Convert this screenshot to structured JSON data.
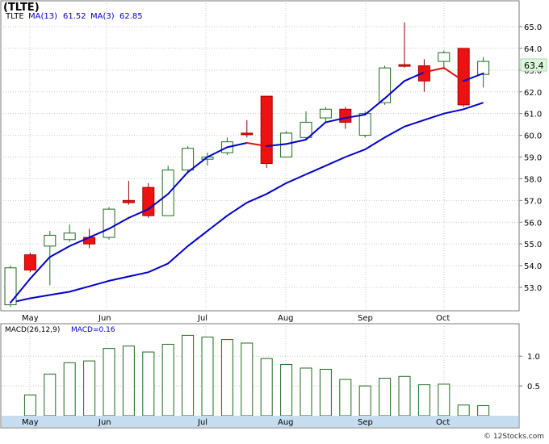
{
  "chart_data": [
    {
      "type": "candlestick",
      "title": "(TLTE)",
      "legend": [
        {
          "label": "TLTE",
          "color": "#000000"
        },
        {
          "label": "MA(13)",
          "value": "61.52",
          "color": "#0000cc"
        },
        {
          "label": "MA(3)",
          "value": "62.85",
          "color": "#0000cc"
        }
      ],
      "price_tag": "63.4",
      "y_ticks": [
        "53.0",
        "54.0",
        "55.0",
        "56.0",
        "57.0",
        "58.0",
        "59.0",
        "60.0",
        "61.0",
        "62.0",
        "63.0",
        "64.0",
        "65.0"
      ],
      "ylim": [
        52.0,
        65.6
      ],
      "x_labels": [
        "May",
        "Jun",
        "Jul",
        "Aug",
        "Sep",
        "Oct"
      ],
      "candles": [
        {
          "open": 52.2,
          "close": 53.9,
          "high": 54.0,
          "low": 52.1
        },
        {
          "open": 54.5,
          "close": 53.8,
          "high": 54.6,
          "low": 53.7
        },
        {
          "open": 54.9,
          "close": 55.4,
          "high": 55.6,
          "low": 53.1
        },
        {
          "open": 55.2,
          "close": 55.5,
          "high": 55.9,
          "low": 55.1
        },
        {
          "open": 55.3,
          "close": 55.0,
          "high": 55.7,
          "low": 54.8
        },
        {
          "open": 55.3,
          "close": 56.6,
          "high": 56.7,
          "low": 55.2
        },
        {
          "open": 57.0,
          "close": 56.9,
          "high": 57.9,
          "low": 56.8
        },
        {
          "open": 57.6,
          "close": 56.3,
          "high": 57.8,
          "low": 56.2
        },
        {
          "open": 56.3,
          "close": 58.4,
          "high": 58.6,
          "low": 56.3
        },
        {
          "open": 58.4,
          "close": 59.4,
          "high": 59.5,
          "low": 58.3
        },
        {
          "open": 58.9,
          "close": 59.0,
          "high": 59.2,
          "low": 58.6
        },
        {
          "open": 59.2,
          "close": 59.7,
          "high": 59.9,
          "low": 59.1
        },
        {
          "open": 60.1,
          "close": 60.05,
          "high": 60.7,
          "low": 59.9
        },
        {
          "open": 61.8,
          "close": 58.7,
          "high": 61.8,
          "low": 58.5
        },
        {
          "open": 59.0,
          "close": 60.1,
          "high": 60.2,
          "low": 59.0
        },
        {
          "open": 59.9,
          "close": 60.6,
          "high": 61.1,
          "low": 59.8
        },
        {
          "open": 60.8,
          "close": 61.2,
          "high": 61.3,
          "low": 60.6
        },
        {
          "open": 61.2,
          "close": 60.6,
          "high": 61.3,
          "low": 60.3
        },
        {
          "open": 60.0,
          "close": 61.0,
          "high": 61.1,
          "low": 59.9
        },
        {
          "open": 61.5,
          "close": 63.1,
          "high": 63.2,
          "low": 61.4
        },
        {
          "open": 63.25,
          "close": 63.2,
          "high": 65.2,
          "low": 63.1
        },
        {
          "open": 63.2,
          "close": 62.5,
          "high": 63.5,
          "low": 62.0
        },
        {
          "open": 63.4,
          "close": 63.8,
          "high": 63.9,
          "low": 63.1
        },
        {
          "open": 64.0,
          "close": 61.4,
          "high": 64.0,
          "low": 61.3
        },
        {
          "open": 62.8,
          "close": 63.4,
          "high": 63.6,
          "low": 62.2
        }
      ],
      "ma13": [
        52.3,
        52.5,
        52.65,
        52.8,
        53.05,
        53.3,
        53.5,
        53.7,
        54.1,
        54.9,
        55.6,
        56.3,
        56.9,
        57.3,
        57.8,
        58.2,
        58.6,
        59.0,
        59.35,
        59.9,
        60.4,
        60.7,
        61.0,
        61.2,
        61.5
      ],
      "ma3": [
        52.3,
        53.4,
        54.4,
        54.9,
        55.3,
        55.7,
        56.2,
        56.6,
        57.3,
        58.3,
        59.0,
        59.45,
        59.65,
        59.5,
        59.6,
        59.8,
        60.6,
        60.8,
        60.95,
        61.7,
        62.5,
        62.9,
        63.1,
        62.5,
        62.85
      ],
      "ma3_red_segments": [
        12,
        21,
        22
      ]
    },
    {
      "type": "bar",
      "title": "MACD(26,12,9)",
      "series_label": "MACD=0.16",
      "y_ticks": [
        "0.5",
        "1.0"
      ],
      "ylim": [
        0.0,
        1.45
      ],
      "x_labels": [
        "May",
        "Jun",
        "Jul",
        "Aug",
        "Sep",
        "Oct"
      ],
      "values": [
        0.0,
        0.35,
        0.7,
        0.89,
        0.92,
        1.13,
        1.17,
        1.07,
        1.2,
        1.35,
        1.32,
        1.28,
        1.22,
        0.96,
        0.86,
        0.8,
        0.78,
        0.61,
        0.5,
        0.63,
        0.66,
        0.52,
        0.53,
        0.18,
        0.17
      ]
    }
  ],
  "footer": "© 12Stocks.com"
}
